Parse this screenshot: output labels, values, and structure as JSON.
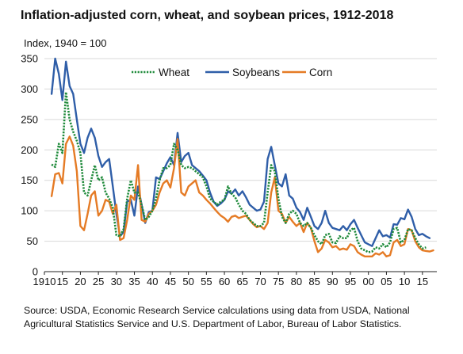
{
  "title": "Inflation-adjusted corn, wheat, and soybean prices, 1912-2018",
  "unit_label": "Index, 1940 = 100",
  "source": "Source: USDA, Economic Research Service calculations using data from USDA, National Agricultural Statistics Service and U.S. Department of Labor, Bureau of Labor Statistics.",
  "chart_data": {
    "type": "line",
    "title": "Inflation-adjusted corn, wheat, and soybean prices, 1912-2018",
    "ylabel": "Index, 1940 = 100",
    "xlabel": "",
    "xlim": [
      1910,
      2019
    ],
    "ylim": [
      0,
      350
    ],
    "yticks": [
      0,
      50,
      100,
      150,
      200,
      250,
      300,
      350
    ],
    "xticks": [
      1910,
      1915,
      1920,
      1925,
      1930,
      1935,
      1940,
      1945,
      1950,
      1955,
      1960,
      1965,
      1970,
      1975,
      1980,
      1985,
      1990,
      1995,
      2000,
      2005,
      2010,
      2015
    ],
    "xtick_labels": [
      "1910",
      "15",
      "20",
      "25",
      "30",
      "35",
      "40",
      "45",
      "50",
      "55",
      "60",
      "65",
      "70",
      "75",
      "80",
      "85",
      "90",
      "95",
      "00",
      "05",
      "10",
      "15"
    ],
    "grid": "horizontal",
    "legend_position": "top",
    "series": [
      {
        "name": "Wheat",
        "color": "#1e8a3a",
        "style": "dotted",
        "x": [
          1912,
          1913,
          1914,
          1915,
          1916,
          1917,
          1918,
          1919,
          1920,
          1921,
          1922,
          1923,
          1924,
          1925,
          1926,
          1927,
          1928,
          1929,
          1930,
          1931,
          1932,
          1933,
          1934,
          1935,
          1936,
          1937,
          1938,
          1939,
          1940,
          1941,
          1942,
          1943,
          1944,
          1945,
          1946,
          1947,
          1948,
          1949,
          1950,
          1951,
          1952,
          1953,
          1954,
          1955,
          1956,
          1957,
          1958,
          1959,
          1960,
          1961,
          1962,
          1963,
          1964,
          1965,
          1966,
          1967,
          1968,
          1969,
          1970,
          1971,
          1972,
          1973,
          1974,
          1975,
          1976,
          1977,
          1978,
          1979,
          1980,
          1981,
          1982,
          1983,
          1984,
          1985,
          1986,
          1987,
          1988,
          1989,
          1990,
          1991,
          1992,
          1993,
          1994,
          1995,
          1996,
          1997,
          1998,
          1999,
          2000,
          2001,
          2002,
          2003,
          2004,
          2005,
          2006,
          2007,
          2008,
          2009,
          2010,
          2011,
          2012,
          2013,
          2014,
          2015,
          2016
        ],
        "values": [
          176,
          172,
          210,
          195,
          295,
          250,
          230,
          215,
          195,
          130,
          125,
          150,
          175,
          150,
          155,
          130,
          120,
          105,
          60,
          58,
          70,
          120,
          150,
          130,
          130,
          110,
          85,
          90,
          100,
          120,
          150,
          170,
          170,
          175,
          210,
          200,
          175,
          170,
          172,
          170,
          165,
          160,
          155,
          140,
          120,
          115,
          110,
          115,
          118,
          140,
          128,
          122,
          110,
          100,
          95,
          85,
          80,
          75,
          75,
          80,
          130,
          175,
          165,
          120,
          90,
          80,
          95,
          100,
          95,
          80,
          75,
          80,
          72,
          60,
          50,
          45,
          60,
          62,
          48,
          47,
          58,
          55,
          55,
          68,
          72,
          50,
          38,
          35,
          32,
          33,
          40,
          38,
          45,
          40,
          48,
          70,
          72,
          48,
          52,
          70,
          68,
          55,
          45,
          38,
          40
        ]
      },
      {
        "name": "Soybeans",
        "color": "#2f5ea8",
        "style": "solid",
        "x": [
          1912,
          1913,
          1914,
          1915,
          1916,
          1917,
          1918,
          1919,
          1920,
          1921,
          1922,
          1923,
          1924,
          1925,
          1926,
          1927,
          1928,
          1929,
          1930,
          1931,
          1932,
          1933,
          1934,
          1935,
          1936,
          1937,
          1938,
          1939,
          1940,
          1941,
          1942,
          1943,
          1944,
          1945,
          1946,
          1947,
          1948,
          1949,
          1950,
          1951,
          1952,
          1953,
          1954,
          1955,
          1956,
          1957,
          1958,
          1959,
          1960,
          1961,
          1962,
          1963,
          1964,
          1965,
          1966,
          1967,
          1968,
          1969,
          1970,
          1971,
          1972,
          1973,
          1974,
          1975,
          1976,
          1977,
          1978,
          1979,
          1980,
          1981,
          1982,
          1983,
          1984,
          1985,
          1986,
          1987,
          1988,
          1989,
          1990,
          1991,
          1992,
          1993,
          1994,
          1995,
          1996,
          1997,
          1998,
          1999,
          2000,
          2001,
          2002,
          2003,
          2004,
          2005,
          2006,
          2007,
          2008,
          2009,
          2010,
          2011,
          2012,
          2013,
          2014,
          2015,
          2016,
          2017
        ],
        "values": [
          292,
          350,
          325,
          282,
          345,
          305,
          292,
          250,
          210,
          195,
          220,
          235,
          220,
          190,
          172,
          180,
          185,
          140,
          95,
          58,
          65,
          115,
          118,
          92,
          140,
          110,
          80,
          98,
          100,
          155,
          152,
          165,
          178,
          188,
          175,
          228,
          180,
          190,
          195,
          175,
          170,
          165,
          158,
          150,
          130,
          115,
          108,
          112,
          118,
          132,
          128,
          135,
          125,
          132,
          122,
          110,
          105,
          100,
          102,
          115,
          185,
          205,
          175,
          145,
          140,
          160,
          125,
          120,
          105,
          98,
          85,
          105,
          90,
          75,
          70,
          80,
          100,
          80,
          72,
          70,
          68,
          75,
          68,
          78,
          85,
          72,
          60,
          48,
          45,
          42,
          55,
          68,
          58,
          60,
          56,
          78,
          77,
          88,
          86,
          102,
          90,
          70,
          60,
          62,
          58,
          55
        ]
      },
      {
        "name": "Corn",
        "color": "#e57b25",
        "style": "solid",
        "x": [
          1912,
          1913,
          1914,
          1915,
          1916,
          1917,
          1918,
          1919,
          1920,
          1921,
          1922,
          1923,
          1924,
          1925,
          1926,
          1927,
          1928,
          1929,
          1930,
          1931,
          1932,
          1933,
          1934,
          1935,
          1936,
          1937,
          1938,
          1939,
          1940,
          1941,
          1942,
          1943,
          1944,
          1945,
          1946,
          1947,
          1948,
          1949,
          1950,
          1951,
          1952,
          1953,
          1954,
          1955,
          1956,
          1957,
          1958,
          1959,
          1960,
          1961,
          1962,
          1963,
          1964,
          1965,
          1966,
          1967,
          1968,
          1969,
          1970,
          1971,
          1972,
          1973,
          1974,
          1975,
          1976,
          1977,
          1978,
          1979,
          1980,
          1981,
          1982,
          1983,
          1984,
          1985,
          1986,
          1987,
          1988,
          1989,
          1990,
          1991,
          1992,
          1993,
          1994,
          1995,
          1996,
          1997,
          1998,
          1999,
          2000,
          2001,
          2002,
          2003,
          2004,
          2005,
          2006,
          2007,
          2008,
          2009,
          2010,
          2011,
          2012,
          2013,
          2014,
          2015,
          2016,
          2017,
          2018
        ],
        "values": [
          124,
          160,
          162,
          145,
          210,
          222,
          207,
          165,
          75,
          68,
          95,
          125,
          132,
          92,
          100,
          118,
          115,
          95,
          110,
          52,
          55,
          85,
          125,
          118,
          175,
          85,
          82,
          95,
          100,
          110,
          130,
          145,
          150,
          138,
          170,
          218,
          130,
          125,
          140,
          145,
          150,
          130,
          125,
          118,
          112,
          105,
          98,
          92,
          88,
          82,
          90,
          92,
          88,
          90,
          92,
          85,
          78,
          73,
          75,
          70,
          80,
          130,
          155,
          100,
          95,
          80,
          90,
          82,
          75,
          80,
          65,
          80,
          72,
          50,
          32,
          38,
          52,
          48,
          40,
          42,
          36,
          38,
          36,
          45,
          42,
          32,
          28,
          25,
          25,
          25,
          30,
          28,
          32,
          25,
          27,
          48,
          52,
          42,
          45,
          70,
          68,
          50,
          40,
          35,
          34,
          33,
          35
        ]
      }
    ]
  }
}
